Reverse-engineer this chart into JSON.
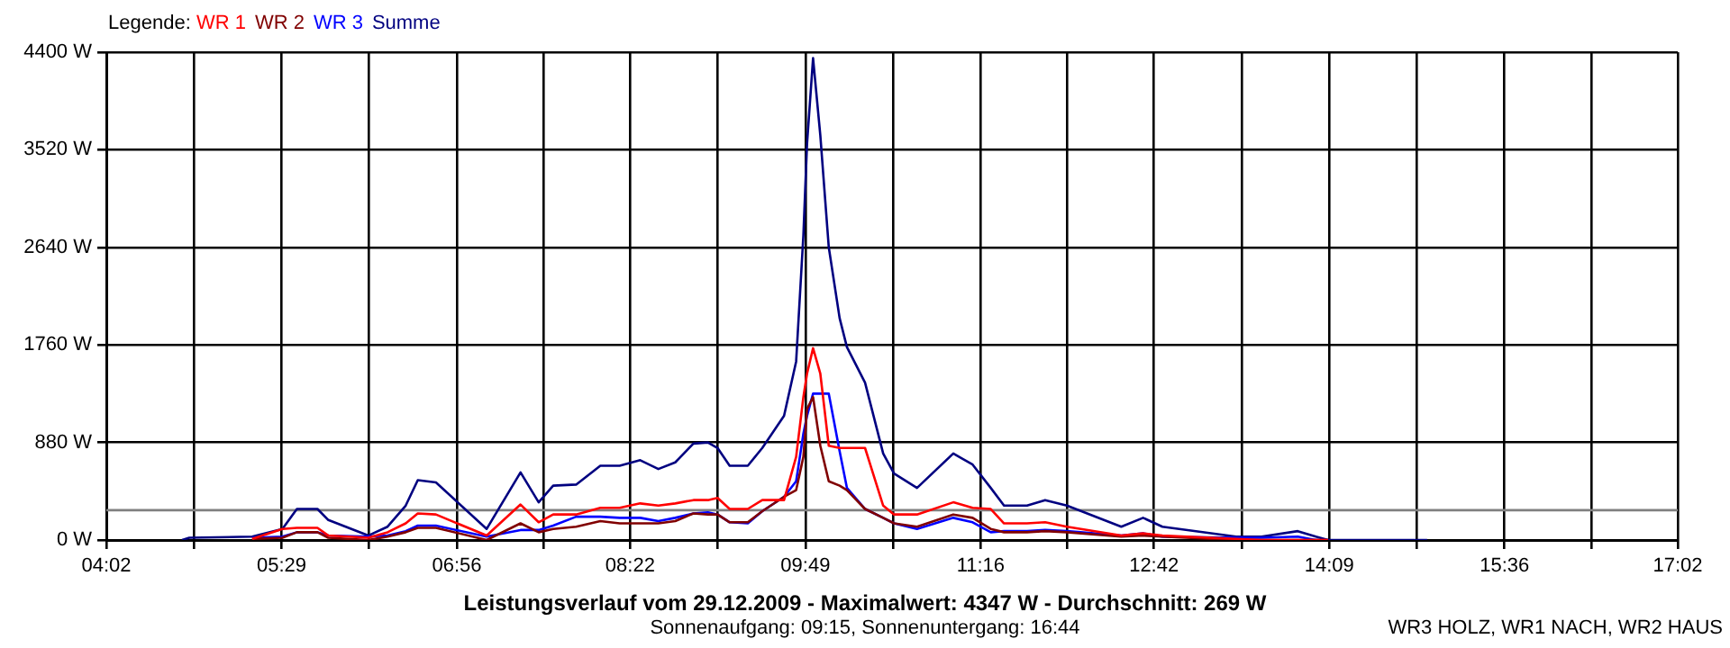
{
  "chart_data": {
    "type": "line",
    "title": "Leistungsverlauf vom 29.12.2009 - Maximalwert: 4347 W - Durchschnitt: 269 W",
    "subtitle": "Sonnenaufgang: 09:15, Sonnenuntergang: 16:44",
    "legend_title": "Legende:",
    "annotations": [
      "WR3 HOLZ, WR1 NACH, WR2 HAUS"
    ],
    "x": [
      4.66,
      4.72,
      5.24,
      5.49,
      5.61,
      5.78,
      5.87,
      6.2,
      6.36,
      6.51,
      6.61,
      6.76,
      7.18,
      7.46,
      7.61,
      7.73,
      7.92,
      8.12,
      8.28,
      8.45,
      8.6,
      8.74,
      8.89,
      9.01,
      9.09,
      9.19,
      9.34,
      9.46,
      9.64,
      9.74,
      9.8,
      9.83,
      9.88,
      9.94,
      10.01,
      10.1,
      10.16,
      10.31,
      10.46,
      10.55,
      10.74,
      11.04,
      11.2,
      11.35,
      11.46,
      11.65,
      11.8,
      11.98,
      12.43,
      12.61,
      12.77,
      13.38,
      13.59,
      13.89,
      14.04,
      14.14,
      14.96
    ],
    "series": [
      {
        "name": "WR 1",
        "color": "#ff0000",
        "values": [
          null,
          null,
          10,
          100,
          110,
          110,
          40,
          20,
          70,
          150,
          240,
          230,
          40,
          320,
          160,
          230,
          230,
          290,
          290,
          330,
          310,
          330,
          360,
          360,
          380,
          280,
          280,
          360,
          360,
          750,
          1290,
          1500,
          1730,
          1500,
          850,
          830,
          830,
          830,
          310,
          230,
          230,
          340,
          290,
          280,
          150,
          150,
          160,
          120,
          40,
          60,
          40,
          10,
          0,
          0,
          0,
          0,
          null
        ]
      },
      {
        "name": "WR 2",
        "color": "#800000",
        "values": [
          null,
          null,
          10,
          20,
          70,
          70,
          20,
          0,
          30,
          70,
          110,
          110,
          0,
          150,
          70,
          100,
          120,
          170,
          150,
          150,
          150,
          170,
          240,
          230,
          230,
          160,
          160,
          260,
          390,
          450,
          750,
          1180,
          1290,
          850,
          530,
          490,
          450,
          280,
          200,
          150,
          120,
          230,
          200,
          100,
          70,
          70,
          80,
          70,
          30,
          40,
          30,
          0,
          0,
          0,
          0,
          0,
          null
        ]
      },
      {
        "name": "WR 3",
        "color": "#0000ff",
        "values": [
          null,
          null,
          20,
          30,
          70,
          70,
          40,
          30,
          40,
          80,
          130,
          130,
          30,
          90,
          90,
          130,
          210,
          210,
          200,
          200,
          170,
          200,
          240,
          250,
          230,
          160,
          150,
          260,
          390,
          530,
          960,
          1120,
          1320,
          1320,
          1320,
          800,
          470,
          280,
          200,
          150,
          100,
          200,
          160,
          70,
          80,
          80,
          90,
          80,
          40,
          60,
          30,
          20,
          20,
          30,
          0,
          0,
          null
        ]
      },
      {
        "name": "Summe",
        "color": "#000080",
        "values": [
          0,
          20,
          30,
          100,
          280,
          280,
          180,
          40,
          120,
          310,
          540,
          520,
          100,
          610,
          340,
          490,
          500,
          670,
          670,
          720,
          640,
          700,
          870,
          880,
          830,
          670,
          670,
          830,
          1120,
          1610,
          2750,
          3570,
          4347,
          3650,
          2640,
          2000,
          1740,
          1420,
          780,
          600,
          470,
          780,
          680,
          470,
          310,
          310,
          360,
          310,
          120,
          200,
          120,
          30,
          30,
          80,
          30,
          0,
          0
        ]
      }
    ],
    "xlim": [
      4.0333,
      17.0333
    ],
    "xticks": [
      {
        "value": 4.0333,
        "label": "04:02"
      },
      {
        "value": 4.7583,
        "label": null
      },
      {
        "value": 5.4833,
        "label": "05:29"
      },
      {
        "value": 6.2083,
        "label": null
      },
      {
        "value": 6.9333,
        "label": "06:56"
      },
      {
        "value": 7.65,
        "label": null
      },
      {
        "value": 8.3667,
        "label": "08:22"
      },
      {
        "value": 9.0917,
        "label": null
      },
      {
        "value": 9.8167,
        "label": "09:49"
      },
      {
        "value": 10.5417,
        "label": null
      },
      {
        "value": 11.2667,
        "label": "11:16"
      },
      {
        "value": 11.9833,
        "label": null
      },
      {
        "value": 12.7,
        "label": "12:42"
      },
      {
        "value": 13.425,
        "label": null
      },
      {
        "value": 14.15,
        "label": "14:09"
      },
      {
        "value": 14.875,
        "label": null
      },
      {
        "value": 15.6,
        "label": "15:36"
      },
      {
        "value": 16.3167,
        "label": null
      },
      {
        "value": 17.0333,
        "label": "17:02"
      }
    ],
    "ylim": [
      0,
      4400
    ],
    "yticks": [
      {
        "value": 0,
        "label": "0 W"
      },
      {
        "value": 880,
        "label": "880 W"
      },
      {
        "value": 1760,
        "label": "1760 W"
      },
      {
        "value": 2640,
        "label": "2640 W"
      },
      {
        "value": 3520,
        "label": "3520 W"
      },
      {
        "value": 4400,
        "label": "4400 W"
      }
    ],
    "ref_lines": [
      {
        "axis": "y",
        "value": 269,
        "color": "#808080"
      }
    ],
    "grid": true,
    "legend": "top left",
    "marker": "none",
    "line_style": "solid"
  }
}
